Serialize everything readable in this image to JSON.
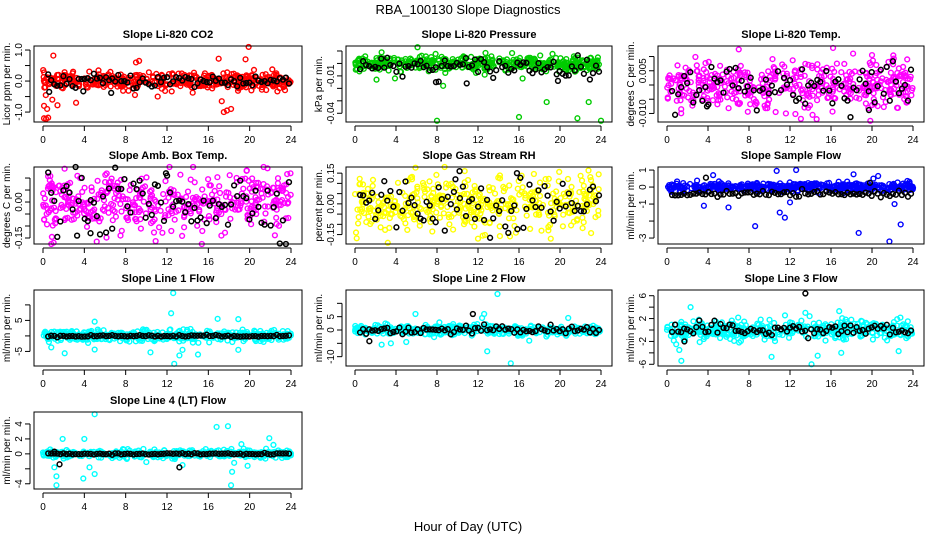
{
  "chart_data": {
    "type": "scatter",
    "title": "RBA_100130  Slope Diagnostics",
    "xlabel": "Hour of Day (UTC)",
    "xlim": [
      0,
      24
    ],
    "xticks": [
      0,
      4,
      8,
      12,
      16,
      20,
      24
    ],
    "black_series_color": "#000000",
    "panels": [
      {
        "title": "Slope Li-820 CO2",
        "ylabel": "Licor ppm per min.",
        "color": "#ff0000",
        "ylim": [
          -1.32,
          1.13
        ],
        "yticks": [
          -1.0,
          -0.5,
          0.0,
          0.5,
          1.0
        ],
        "ylabels": [
          "-1.0",
          "",
          "0.0",
          "",
          "1.0"
        ],
        "n": 420,
        "sd": 0.13,
        "black_sd": 0.12,
        "black_offset": 0,
        "outliers": [
          [
            0.1,
            -1.2
          ],
          [
            0.3,
            -1.22
          ],
          [
            0.5,
            -1.18
          ],
          [
            0.1,
            -0.8
          ],
          [
            0.4,
            -0.9
          ],
          [
            1.0,
            0.82
          ],
          [
            0.9,
            -0.6
          ],
          [
            1.4,
            -0.78
          ],
          [
            3.2,
            -0.7
          ],
          [
            9.0,
            0.6
          ],
          [
            9.3,
            0.65
          ],
          [
            17.0,
            0.72
          ],
          [
            17.5,
            -1.0
          ],
          [
            17.8,
            -0.95
          ],
          [
            18.2,
            -0.9
          ],
          [
            19.6,
            0.7
          ],
          [
            19.9,
            1.1
          ],
          [
            17.3,
            -0.65
          ],
          [
            8.9,
            -0.45
          ],
          [
            11.1,
            -0.5
          ]
        ],
        "black_outliers": [
          [
            0.6,
            -0.35
          ],
          [
            3.9,
            -0.33
          ],
          [
            6.6,
            -0.38
          ]
        ]
      },
      {
        "title": "Slope Li-820 Pressure",
        "ylabel": "kPa per min.",
        "color": "#00cc00",
        "ylim": [
          -0.047,
          0.014
        ],
        "yticks": [
          -0.04,
          -0.03,
          -0.02,
          -0.01,
          0.0,
          0.01
        ],
        "ylabels": [
          "-0.04",
          "",
          "",
          "-0.01",
          "",
          ""
        ],
        "n": 420,
        "sd": 0.003,
        "black_sd": 0.004,
        "black_offset": -0.003,
        "outliers": [
          [
            8,
            -0.046
          ],
          [
            16,
            -0.043
          ],
          [
            18.7,
            -0.031
          ],
          [
            21.7,
            -0.044
          ],
          [
            22.8,
            -0.031
          ],
          [
            24,
            -0.046
          ],
          [
            6.1,
            0.013
          ],
          [
            8.6,
            -0.018
          ],
          [
            3.9,
            -0.012
          ],
          [
            2.1,
            -0.013
          ]
        ],
        "black_outliers": [
          [
            7.9,
            -0.015
          ],
          [
            10.9,
            -0.016
          ],
          [
            19.8,
            -0.014
          ]
        ]
      },
      {
        "title": "Slope Li-820 Temp.",
        "ylabel": "degrees C per min.",
        "color": "#ff00ff",
        "ylim": [
          -0.013,
          0.0137
        ],
        "yticks": [
          -0.01,
          -0.005,
          0.0,
          0.005,
          0.01
        ],
        "ylabels": [
          "-0.010",
          "",
          "",
          "0.005",
          ""
        ],
        "n": 420,
        "sd": 0.0042,
        "black_sd": 0.004,
        "black_offset": 0,
        "outliers": [
          [
            7.0,
            0.0125
          ],
          [
            16.2,
            0.013
          ],
          [
            14.6,
            -0.012
          ],
          [
            14.2,
            -0.0105
          ],
          [
            11.6,
            -0.01
          ],
          [
            10.6,
            -0.0095
          ],
          [
            20.0,
            0.0105
          ]
        ],
        "black_outliers": [
          [
            3.9,
            -0.0075
          ],
          [
            19.7,
            -0.0088
          ]
        ]
      },
      {
        "title": "Slope Amb. Box Temp.",
        "ylabel": "degrees C per min.",
        "color": "#ff00ff",
        "ylim": [
          -0.175,
          0.146
        ],
        "yticks": [
          -0.15,
          -0.1,
          -0.05,
          0.0,
          0.05,
          0.1
        ],
        "ylabels": [
          "-0.15",
          "",
          "",
          "0.00",
          "",
          ""
        ],
        "n": 420,
        "sd": 0.06,
        "black_sd": 0.065,
        "black_offset": 0,
        "outliers": [
          [
            5.2,
            -0.165
          ],
          [
            10.9,
            -0.163
          ],
          [
            19.7,
            0.13
          ],
          [
            7.5,
            -0.14
          ]
        ],
        "black_outliers": [
          [
            3.3,
            -0.14
          ],
          [
            11.9,
            0.12
          ],
          [
            4.6,
            -0.13
          ]
        ]
      },
      {
        "title": "Slope Gas Stream RH",
        "ylabel": "percent per min.",
        "color": "#ffff00",
        "ylim": [
          -0.196,
          0.18
        ],
        "yticks": [
          -0.15,
          -0.1,
          -0.05,
          0.0,
          0.05,
          0.1,
          0.15
        ],
        "ylabels": [
          "-0.15",
          "",
          "",
          "0.00",
          "",
          "",
          "0.15"
        ],
        "n": 420,
        "sd": 0.065,
        "black_sd": 0.065,
        "black_offset": 0,
        "outliers": [
          [
            3.2,
            -0.19
          ],
          [
            10.7,
            0.16
          ],
          [
            12.0,
            -0.17
          ],
          [
            19.1,
            -0.17
          ],
          [
            0.1,
            -0.14
          ]
        ],
        "black_outliers": [
          [
            10.2,
            0.16
          ],
          [
            15.8,
            0.15
          ],
          [
            9.8,
            0.12
          ]
        ]
      },
      {
        "title": "Slope Sample Flow",
        "ylabel": "ml/min per min.",
        "color": "#0000ff",
        "ylim": [
          -3.35,
          1.18
        ],
        "yticks": [
          -3,
          -2,
          -1,
          0,
          1
        ],
        "ylabels": [
          "-3",
          "",
          "-1",
          "0",
          "1"
        ],
        "n": 420,
        "sd": 0.13,
        "black_sd": 0.08,
        "black_offset": -0.4,
        "outliers": [
          [
            3.6,
            -1.1
          ],
          [
            4.5,
            0.7
          ],
          [
            6.0,
            -1.2
          ],
          [
            8.6,
            -2.3
          ],
          [
            10.7,
            0.95
          ],
          [
            11.0,
            -1.5
          ],
          [
            11.5,
            -1.8
          ],
          [
            12.0,
            -0.9
          ],
          [
            12.6,
            1.0
          ],
          [
            18.7,
            -2.7
          ],
          [
            21.7,
            -3.2
          ],
          [
            22.2,
            -1.0
          ],
          [
            22.8,
            -2.2
          ],
          [
            18.2,
            0.75
          ],
          [
            20.6,
            0.65
          ]
        ],
        "black_outliers": [
          [
            3.8,
            0.55
          ],
          [
            19.8,
            0.25
          ]
        ]
      },
      {
        "title": "Slope Line 1 Flow",
        "ylabel": "ml/min per min.",
        "color": "#00ffff",
        "ylim": [
          -9.7,
          14.8
        ],
        "yticks": [
          -5,
          0,
          5,
          10
        ],
        "ylabels": [
          "-5",
          "",
          "5",
          ""
        ],
        "n": 420,
        "sd": 0.9,
        "black_sd": 0.15,
        "black_offset": 0,
        "outliers": [
          [
            12.6,
            13.8
          ],
          [
            12.7,
            -9.0
          ],
          [
            12.4,
            7.3
          ],
          [
            2.1,
            -5.6
          ],
          [
            5.0,
            -4.4
          ],
          [
            5.0,
            4.6
          ],
          [
            13.2,
            -6.3
          ],
          [
            15.0,
            -6
          ],
          [
            16.9,
            5.5
          ],
          [
            18.9,
            5.4
          ],
          [
            18.9,
            -4.5
          ],
          [
            10.4,
            -5.3
          ],
          [
            0.8,
            -3.7
          ],
          [
            13.5,
            -4.5
          ]
        ],
        "black_outliers": []
      },
      {
        "title": "Slope Line 2 Flow",
        "ylabel": "ml/min per min.",
        "color": "#00ffff",
        "ylim": [
          -13.5,
          15
        ],
        "yticks": [
          -10,
          -5,
          0,
          5,
          10
        ],
        "ylabels": [
          "-10",
          "",
          "0",
          "5",
          ""
        ],
        "n": 420,
        "sd": 0.9,
        "black_sd": 0.8,
        "black_offset": 0,
        "outliers": [
          [
            13.9,
            13.5
          ],
          [
            12.9,
            -8
          ],
          [
            15.2,
            -12.5
          ],
          [
            5.9,
            6
          ],
          [
            12.6,
            6
          ],
          [
            2.6,
            -5.5
          ],
          [
            17.0,
            -4
          ],
          [
            20.8,
            4.5
          ],
          [
            3.5,
            -5
          ],
          [
            12.4,
            4.5
          ],
          [
            5.0,
            -4.5
          ]
        ],
        "black_outliers": [
          [
            11.5,
            6
          ],
          [
            1.4,
            -4.2
          ]
        ]
      },
      {
        "title": "Slope Line 3 Flow",
        "ylabel": "ml/min per min.",
        "color": "#00ffff",
        "ylim": [
          -6.3,
          7
        ],
        "yticks": [
          -6,
          -4,
          -2,
          0,
          2,
          4,
          6
        ],
        "ylabels": [
          "-6",
          "",
          "-2",
          "",
          "2",
          "",
          "6"
        ],
        "n": 420,
        "sd": 0.8,
        "black_sd": 0.6,
        "black_offset": 0,
        "outliers": [
          [
            1.4,
            -5.4
          ],
          [
            2.3,
            4
          ],
          [
            14.1,
            -6
          ],
          [
            10.2,
            -4.7
          ],
          [
            16.8,
            3.3
          ],
          [
            17.0,
            -4
          ],
          [
            22.6,
            -3.7
          ],
          [
            1.2,
            -3.5
          ],
          [
            13.5,
            3
          ],
          [
            0.9,
            -2.5
          ],
          [
            14.7,
            -4.5
          ]
        ],
        "black_outliers": [
          [
            13.5,
            6.4
          ],
          [
            1.7,
            -2.0
          ]
        ]
      },
      {
        "title": "Slope Line 4 (LT) Flow",
        "ylabel": "ml/min per min.",
        "color": "#00ffff",
        "ylim": [
          -4.7,
          5.6
        ],
        "yticks": [
          -4,
          -2,
          0,
          2,
          4
        ],
        "ylabels": [
          "-4",
          "",
          "0",
          "2",
          "4"
        ],
        "n": 420,
        "sd": 0.25,
        "black_sd": 0.05,
        "black_offset": 0,
        "outliers": [
          [
            5.0,
            5.3
          ],
          [
            1.3,
            -4.2
          ],
          [
            18.2,
            -4.2
          ],
          [
            16.8,
            3.6
          ],
          [
            17.9,
            3.7
          ],
          [
            1.3,
            -3.0
          ],
          [
            3.9,
            -3.3
          ],
          [
            5.0,
            -2.7
          ],
          [
            4.0,
            2.0
          ],
          [
            1.9,
            2.0
          ],
          [
            21.9,
            2.1
          ],
          [
            18.3,
            -2.4
          ],
          [
            13.5,
            -1.5
          ],
          [
            10.0,
            -1.1
          ],
          [
            1.1,
            -1.8
          ],
          [
            4.5,
            -1.8
          ],
          [
            18.5,
            -1.2
          ],
          [
            19.2,
            1.3
          ],
          [
            22.3,
            1.2
          ],
          [
            19.8,
            -1.6
          ]
        ],
        "black_outliers": [
          [
            1.6,
            -1.4
          ],
          [
            13.2,
            -1.8
          ],
          [
            1.1,
            0.3
          ]
        ]
      }
    ]
  }
}
